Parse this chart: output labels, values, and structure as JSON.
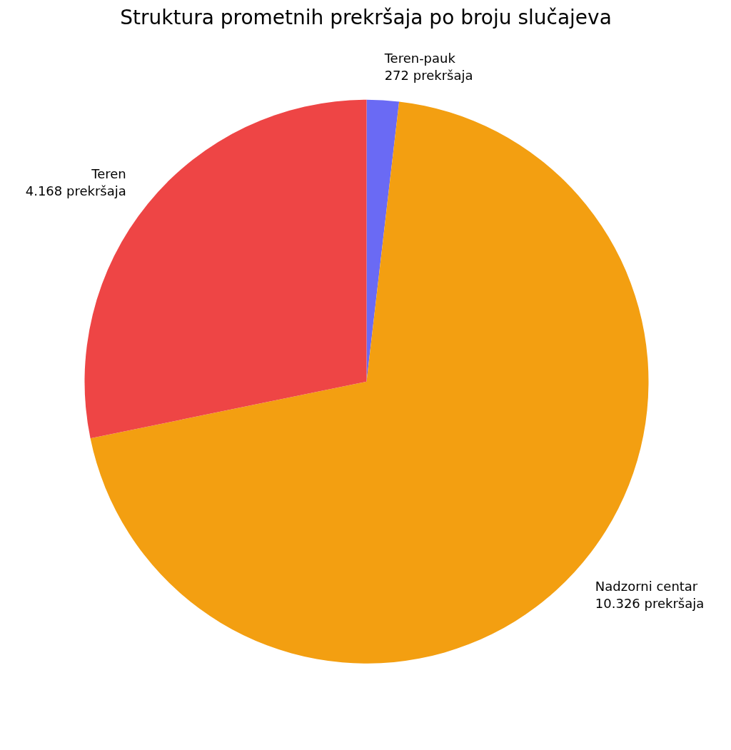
{
  "chart_data": {
    "type": "pie",
    "title": "Struktura prometnih prekršaja po broju slučajeva",
    "categories": [
      "Teren-pauk",
      "Nadzorni centar",
      "Teren"
    ],
    "values": [
      272,
      10326,
      4168
    ],
    "value_labels": [
      "272 prekršaja",
      "10.326 prekršaja",
      "4.168 prekršaja"
    ],
    "colors": [
      "#6a6af4",
      "#f39f11",
      "#ee4545"
    ]
  }
}
